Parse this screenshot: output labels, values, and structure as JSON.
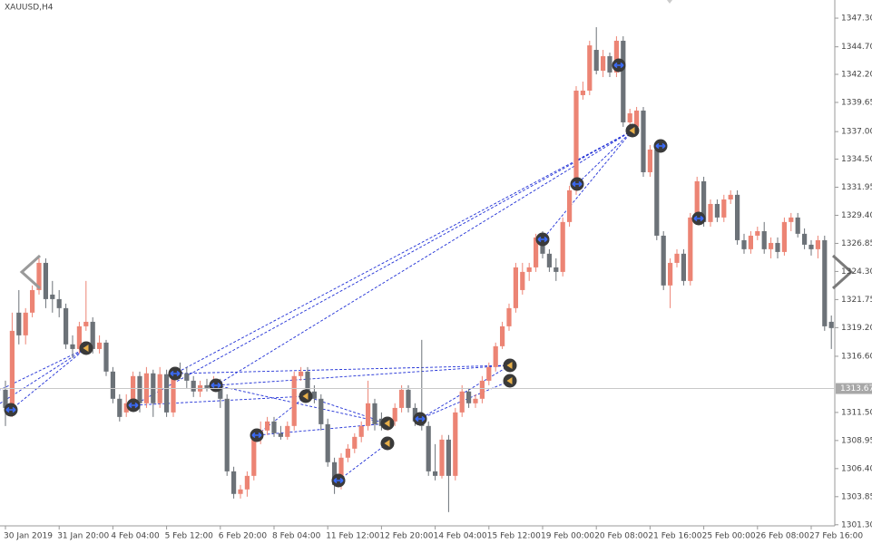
{
  "chart_data": {
    "type": "candlestick",
    "title": "XAUUSD,H4",
    "categories": [
      "30 Jan 2019",
      null,
      null,
      null,
      null,
      null,
      null,
      null,
      "31 Jan 20:00",
      null,
      null,
      null,
      null,
      null,
      null,
      null,
      "4 Feb 04:00",
      null,
      null,
      null,
      null,
      null,
      null,
      null,
      "5 Feb 12:00",
      null,
      null,
      null,
      null,
      null,
      null,
      null,
      "6 Feb 20:00",
      null,
      null,
      null,
      null,
      null,
      null,
      null,
      "8 Feb 04:00",
      null,
      null,
      null,
      null,
      null,
      null,
      null,
      "11 Feb 12:00",
      null,
      null,
      null,
      null,
      null,
      null,
      null,
      "12 Feb 20:00",
      null,
      null,
      null,
      null,
      null,
      null,
      null,
      "14 Feb 04:00",
      null,
      null,
      null,
      null,
      null,
      null,
      null,
      "15 Feb 12:00",
      null,
      null,
      null,
      null,
      null,
      null,
      null,
      "19 Feb 00:00",
      null,
      null,
      null,
      null,
      null,
      null,
      null,
      "20 Feb 08:00",
      null,
      null,
      null,
      null,
      null,
      null,
      null,
      "21 Feb 16:00",
      null,
      null,
      null,
      null,
      null,
      null,
      null,
      "25 Feb 00:00",
      null,
      null,
      null,
      null,
      null,
      null,
      null,
      "26 Feb 08:00",
      null,
      null,
      null,
      null,
      null,
      null,
      null,
      "27 Feb 16:00",
      null,
      null,
      null
    ],
    "open": [
      1313.56,
      1311.5,
      1320.56,
      1318.5,
      1320.56,
      1322.61,
      1325.08,
      1322.2,
      1321.79,
      1320.97,
      1317.68,
      1317.26,
      1319.32,
      1319.73,
      1317.26,
      1317.84,
      1315.21,
      1312.74,
      1311.5,
      1312.33,
      1314.8,
      1312.33,
      1315.05,
      1312.33,
      1314.97,
      1311.5,
      1315.21,
      1315.05,
      1314.38,
      1313.4,
      1313.97,
      1313.72,
      1314.14,
      1312.74,
      1306.15,
      1304.1,
      1304.51,
      1305.74,
      1309.45,
      1309.86,
      1310.68,
      1309.61,
      1309.28,
      1310.27,
      1314.8,
      1315.21,
      1313.4,
      1312.74,
      1310.43,
      1306.98,
      1304.92,
      1307.39,
      1308.21,
      1309.28,
      1310.27,
      1312.33,
      1310.93,
      1310.27,
      1310.68,
      1311.91,
      1313.56,
      1311.91,
      1310.68,
      1310.27,
      1306.15,
      1305.74,
      1309.03,
      1305.74,
      1311.5,
      1313.4,
      1312.33,
      1312.74,
      1314.38,
      1315.62,
      1317.51,
      1319.32,
      1320.97,
      1322.61,
      1324.26,
      1324.67,
      1327.39,
      1325.91,
      1324.67,
      1324.26,
      1328.79,
      1331.67,
      1340.31,
      1340.72,
      1344.42,
      1342.53,
      1343.85,
      1342.37,
      1345.25,
      1337.84,
      1337.43,
      1338.91,
      1333.31,
      1335.37,
      1327.55,
      1323.03,
      1325.08,
      1325.91,
      1323.44,
      1329.2,
      1332.49,
      1328.79,
      1330.43,
      1329.2,
      1330.84,
      1331.26,
      1327.14,
      1326.32,
      1327.55,
      1327.96,
      1326.32,
      1326.89,
      1326.07,
      1328.79,
      1329.2,
      1327.72,
      1326.73,
      1326.32,
      1327.14,
      1319.73
    ],
    "high": [
      1314.38,
      1320.56,
      1322.61,
      1320.97,
      1323.03,
      1325.49,
      1325.49,
      1323.44,
      1322.61,
      1321.38,
      1318.5,
      1319.73,
      1323.44,
      1320.14,
      1318.5,
      1318.09,
      1315.62,
      1313.15,
      1313.15,
      1315.21,
      1315.21,
      1315.62,
      1315.38,
      1315.62,
      1315.38,
      1315.62,
      1316.03,
      1315.62,
      1314.8,
      1314.38,
      1314.55,
      1314.8,
      1314.55,
      1313.15,
      1306.57,
      1304.92,
      1306.15,
      1309.86,
      1310.68,
      1311.09,
      1311.09,
      1310.27,
      1310.68,
      1315.21,
      1315.62,
      1315.62,
      1313.97,
      1313.15,
      1310.93,
      1307.39,
      1307.8,
      1308.62,
      1309.61,
      1310.68,
      1314.38,
      1312.74,
      1311.5,
      1311.09,
      1312.33,
      1313.97,
      1313.97,
      1312.33,
      1318.09,
      1310.68,
      1308.62,
      1309.45,
      1309.45,
      1311.91,
      1313.97,
      1313.72,
      1313.15,
      1314.8,
      1316.03,
      1317.84,
      1319.73,
      1321.38,
      1325.08,
      1325.08,
      1325.08,
      1327.72,
      1327.96,
      1326.32,
      1325.49,
      1329.2,
      1332.08,
      1341.13,
      1341.54,
      1345.25,
      1346.48,
      1344.42,
      1344.18,
      1345.66,
      1345.66,
      1339.07,
      1339.24,
      1339.24,
      1335.78,
      1335.78,
      1327.96,
      1325.49,
      1326.32,
      1326.32,
      1329.61,
      1332.9,
      1332.9,
      1330.84,
      1330.84,
      1331.26,
      1331.67,
      1331.67,
      1327.72,
      1327.96,
      1328.37,
      1328.79,
      1327.39,
      1327.39,
      1329.2,
      1329.61,
      1329.61,
      1328.21,
      1327.14,
      1327.55,
      1327.55,
      1320.3
    ],
    "low": [
      1310.27,
      1311.09,
      1317.68,
      1317.68,
      1320.14,
      1322.2,
      1320.97,
      1320.56,
      1320.14,
      1317.26,
      1316.44,
      1316.85,
      1318.91,
      1316.85,
      1316.85,
      1314.8,
      1312.33,
      1310.68,
      1311.09,
      1311.91,
      1311.5,
      1311.91,
      1311.09,
      1311.91,
      1311.09,
      1311.09,
      1314.55,
      1313.72,
      1312.9,
      1312.9,
      1313.4,
      1313.4,
      1311.91,
      1305.74,
      1303.68,
      1303.68,
      1303.85,
      1305.33,
      1308.62,
      1309.45,
      1309.28,
      1309.03,
      1309.03,
      1309.86,
      1314.38,
      1312.9,
      1312.33,
      1309.86,
      1306.57,
      1304.1,
      1304.51,
      1306.98,
      1307.8,
      1308.79,
      1309.86,
      1309.86,
      1309.86,
      1309.86,
      1310.27,
      1311.5,
      1311.5,
      1310.27,
      1309.86,
      1305.74,
      1305.33,
      1305.5,
      1302.45,
      1305.33,
      1311.09,
      1311.91,
      1311.91,
      1312.33,
      1313.97,
      1315.21,
      1317.26,
      1318.91,
      1320.56,
      1322.2,
      1323.44,
      1324.26,
      1325.49,
      1324.26,
      1323.44,
      1323.85,
      1328.37,
      1331.26,
      1339.9,
      1340.31,
      1342.2,
      1341.95,
      1341.95,
      1341.95,
      1337.43,
      1337.43,
      1337.02,
      1332.9,
      1332.9,
      1327.14,
      1322.61,
      1320.97,
      1324.67,
      1323.03,
      1323.03,
      1328.79,
      1328.37,
      1328.37,
      1328.79,
      1328.79,
      1330.43,
      1326.73,
      1325.91,
      1325.91,
      1327.14,
      1325.91,
      1325.49,
      1325.49,
      1325.74,
      1327.96,
      1327.39,
      1326.32,
      1325.74,
      1325.49,
      1318.91,
      1317.26
    ],
    "close": [
      1311.91,
      1318.91,
      1318.5,
      1320.56,
      1322.61,
      1325.08,
      1321.79,
      1321.79,
      1320.97,
      1317.68,
      1317.26,
      1319.32,
      1319.73,
      1317.26,
      1317.84,
      1315.21,
      1312.74,
      1311.09,
      1312.33,
      1314.8,
      1312.33,
      1315.05,
      1312.33,
      1314.97,
      1311.5,
      1315.21,
      1315.05,
      1314.38,
      1313.4,
      1313.97,
      1313.72,
      1314.14,
      1312.74,
      1306.15,
      1304.1,
      1304.51,
      1305.74,
      1309.45,
      1309.86,
      1310.68,
      1309.61,
      1309.28,
      1310.27,
      1314.8,
      1315.21,
      1313.4,
      1312.74,
      1310.43,
      1306.98,
      1304.92,
      1307.39,
      1308.21,
      1309.28,
      1310.27,
      1312.33,
      1310.43,
      1310.27,
      1310.68,
      1311.91,
      1313.56,
      1311.91,
      1310.68,
      1310.27,
      1306.15,
      1305.74,
      1309.03,
      1305.74,
      1311.5,
      1313.4,
      1312.33,
      1312.74,
      1314.38,
      1315.62,
      1317.51,
      1319.32,
      1320.97,
      1324.67,
      1324.26,
      1324.67,
      1327.39,
      1325.91,
      1324.67,
      1324.26,
      1328.79,
      1331.67,
      1340.72,
      1340.72,
      1344.83,
      1342.53,
      1343.85,
      1342.37,
      1345.25,
      1337.84,
      1338.66,
      1338.91,
      1333.31,
      1335.37,
      1327.55,
      1323.03,
      1325.08,
      1325.91,
      1323.44,
      1329.2,
      1332.49,
      1328.79,
      1330.43,
      1329.2,
      1330.84,
      1331.26,
      1327.14,
      1326.32,
      1327.55,
      1327.96,
      1326.32,
      1326.89,
      1326.07,
      1328.79,
      1329.2,
      1327.72,
      1326.73,
      1326.32,
      1327.14,
      1319.32,
      1319.16
    ],
    "up_color": "#ec8474",
    "down_color": "#6c7278",
    "ylim": [
      1301.2,
      1348.95
    ],
    "yticks": [
      {
        "value": 1347.3,
        "label": "1347.30"
      },
      {
        "value": 1344.7,
        "label": "1344.70"
      },
      {
        "value": 1342.2,
        "label": "1342.20"
      },
      1339.65,
      {
        "value": 1337,
        "label": "1337.00"
      },
      {
        "value": 1334.5,
        "label": "1334.50"
      },
      1331.95,
      {
        "value": 1329.4,
        "label": "1329.40"
      },
      1326.85,
      {
        "value": 1324.3,
        "label": "1324.30"
      },
      1321.75,
      {
        "value": 1319.2,
        "label": "1319.20"
      },
      {
        "value": 1316.6,
        "label": "1316.60"
      },
      {
        "value": 1311.5,
        "label": "1311.50"
      },
      1308.95,
      {
        "value": 1306.4,
        "label": "1306.40"
      },
      1303.85,
      {
        "value": 1301.3,
        "label": "1301.30"
      }
    ],
    "current_price": 1313.67
  }
}
